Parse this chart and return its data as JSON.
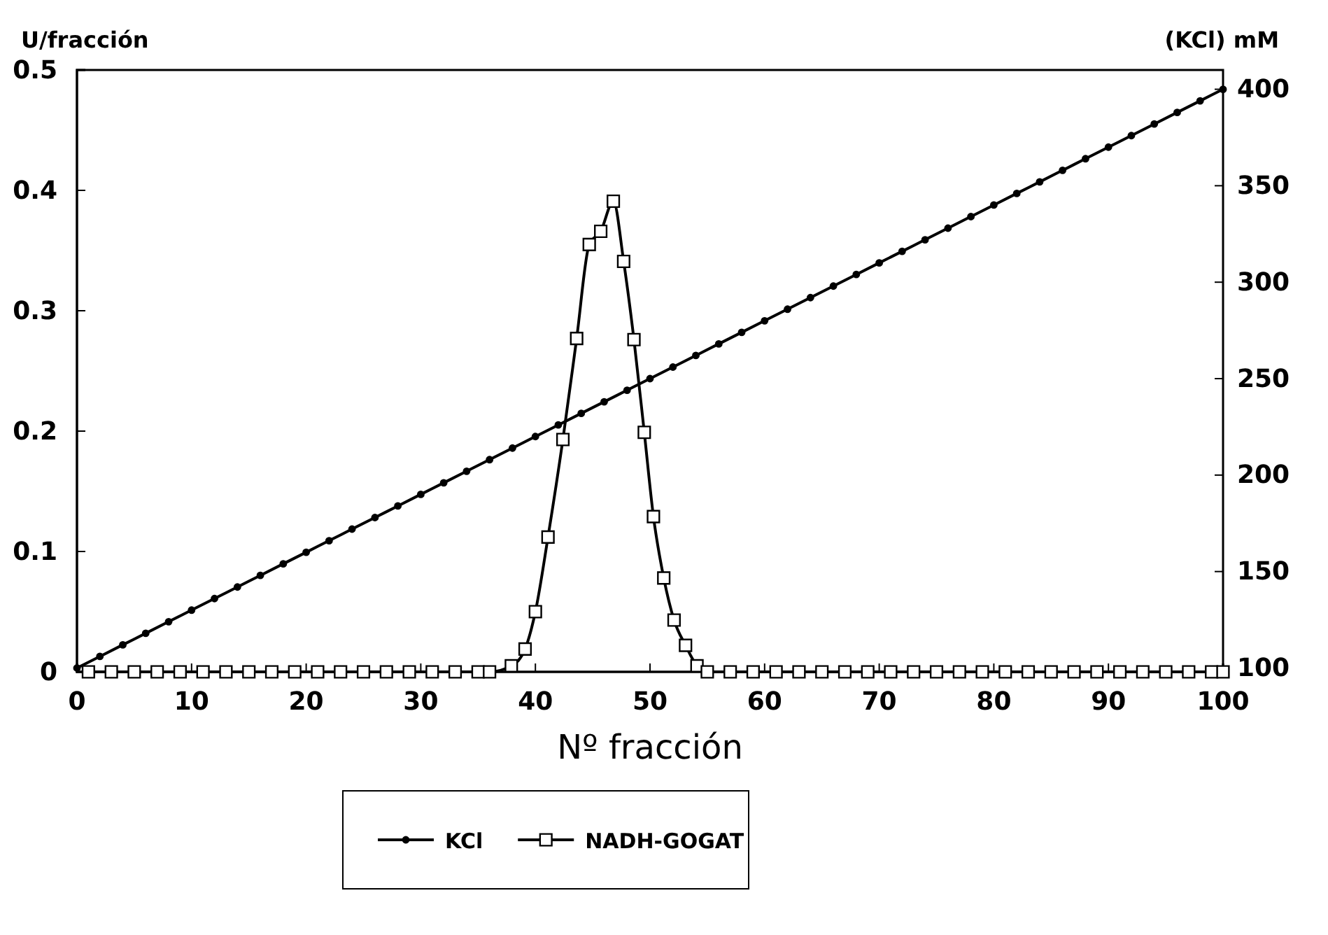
{
  "chart_data": {
    "type": "line",
    "xlabel": "Nº fracción",
    "ylabel": "U/fracción",
    "y2label": "(KCl) mM",
    "xlim": [
      0,
      100
    ],
    "xticks": [
      0,
      10,
      20,
      30,
      40,
      50,
      60,
      70,
      80,
      90,
      100
    ],
    "ylim": [
      0,
      0.5
    ],
    "yticks": [
      0,
      0.1,
      0.2,
      0.3,
      0.4,
      0.5
    ],
    "y2lim": [
      98,
      410
    ],
    "y2ticks": [
      100,
      150,
      200,
      250,
      300,
      350,
      400
    ],
    "grid": false,
    "legend": "bottom",
    "series": [
      {
        "name": "KCl",
        "color": "#000000",
        "axis": "y2",
        "marker": "circle",
        "x": [
          0,
          2,
          4,
          6,
          8,
          10,
          12,
          14,
          16,
          18,
          20,
          22,
          24,
          26,
          28,
          30,
          32,
          34,
          36,
          38,
          40,
          42,
          44,
          46,
          48,
          50,
          52,
          54,
          56,
          58,
          60,
          62,
          64,
          66,
          68,
          70,
          72,
          74,
          76,
          78,
          80,
          82,
          84,
          86,
          88,
          90,
          92,
          94,
          96,
          98,
          100
        ],
        "values": [
          100,
          106,
          112,
          118,
          124,
          130,
          136,
          142,
          148,
          154,
          160,
          166,
          172,
          178,
          184,
          190,
          196,
          202,
          208,
          214,
          220,
          226,
          232,
          238,
          244,
          250,
          256,
          262,
          268,
          274,
          280,
          286,
          292,
          298,
          304,
          310,
          316,
          322,
          328,
          334,
          340,
          346,
          352,
          358,
          364,
          370,
          376,
          382,
          388,
          394,
          400
        ]
      },
      {
        "name": "NADH-GOGAT",
        "color": "#000000",
        "marker": "square",
        "x": [
          1,
          3,
          5,
          7,
          9,
          11,
          13,
          15,
          17,
          19,
          21,
          23,
          25,
          27,
          29,
          31,
          33,
          35,
          36,
          37.9,
          39.1,
          40,
          41.1,
          42.4,
          43.6,
          44.7,
          45.7,
          46.8,
          47.7,
          48.6,
          49.5,
          50.3,
          51.2,
          52.1,
          53.1,
          54.1,
          55,
          57,
          59,
          61,
          63,
          65,
          67,
          69,
          71,
          73,
          75,
          77,
          79,
          81,
          83,
          85,
          87,
          89,
          91,
          93,
          95,
          97,
          99,
          100
        ],
        "values": [
          0,
          0,
          0,
          0,
          0,
          0,
          0,
          0,
          0,
          0,
          0,
          0,
          0,
          0,
          0,
          0,
          0,
          0,
          0,
          0.005,
          0.019,
          0.05,
          0.112,
          0.193,
          0.277,
          0.355,
          0.366,
          0.391,
          0.341,
          0.276,
          0.199,
          0.129,
          0.078,
          0.043,
          0.022,
          0.005,
          0,
          0,
          0,
          0,
          0,
          0,
          0,
          0,
          0,
          0,
          0,
          0,
          0,
          0,
          0,
          0,
          0,
          0,
          0,
          0,
          0,
          0,
          0,
          0
        ]
      }
    ]
  }
}
